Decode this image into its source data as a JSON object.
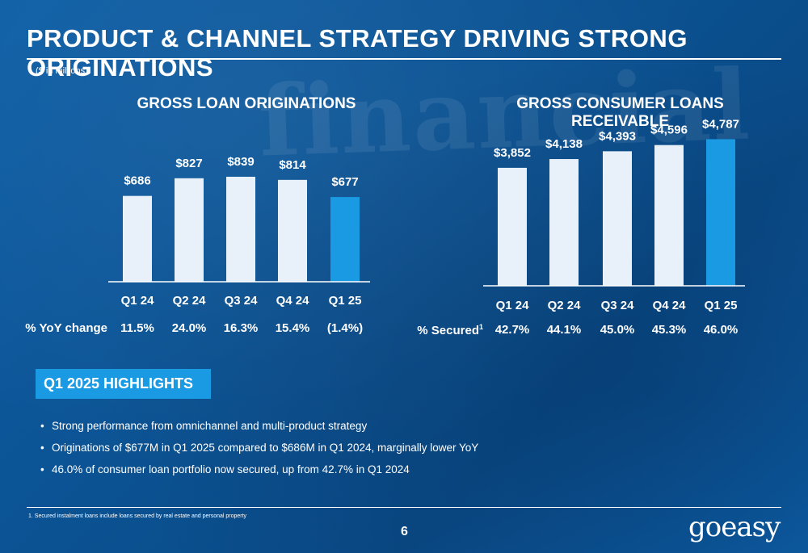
{
  "title": "PRODUCT & CHANNEL STRATEGY DRIVING STRONG ORIGINATIONS",
  "units": "($ in millions)",
  "chart_data": [
    {
      "type": "bar",
      "title": "GROSS LOAN ORIGINATIONS",
      "categories": [
        "Q1 24",
        "Q2 24",
        "Q3 24",
        "Q4 24",
        "Q1 25"
      ],
      "values": [
        686,
        827,
        839,
        814,
        677
      ],
      "value_labels": [
        "$686",
        "$827",
        "$839",
        "$814",
        "$677"
      ],
      "ylim": [
        0,
        1000
      ],
      "bar_color": "#e8f1fa",
      "highlight_color": "#1a9ae3",
      "highlight_index": 4,
      "row_label": "% YoY change",
      "row_values": [
        "11.5%",
        "24.0%",
        "16.3%",
        "15.4%",
        "(1.4%)"
      ]
    },
    {
      "type": "bar",
      "title": "GROSS CONSUMER LOANS RECEIVABLE",
      "categories": [
        "Q1 24",
        "Q2 24",
        "Q3 24",
        "Q4 24",
        "Q1 25"
      ],
      "values": [
        3852,
        4138,
        4393,
        4596,
        4787
      ],
      "value_labels": [
        "$3,852",
        "$4,138",
        "$4,393",
        "$4,596",
        "$4,787"
      ],
      "ylim": [
        0,
        5800
      ],
      "bar_color": "#e8f1fa",
      "highlight_color": "#1a9ae3",
      "highlight_index": 4,
      "row_label": "% Secured",
      "row_label_sup": "1",
      "row_values": [
        "42.7%",
        "44.1%",
        "45.0%",
        "45.3%",
        "46.0%"
      ]
    }
  ],
  "highlights": {
    "heading": "Q1 2025 HIGHLIGHTS",
    "bullets": [
      "Strong performance from omnichannel and multi-product strategy",
      "Originations of $677M in Q1 2025 compared to $686M in Q1 2024, marginally lower YoY",
      "46.0% of consumer loan portfolio now secured, up from 42.7% in Q1 2024"
    ]
  },
  "footnote": "1.   Secured instalment loans include loans secured by real estate and personal property",
  "page_number": "6",
  "logo": "goeasy",
  "background_text": "financial"
}
